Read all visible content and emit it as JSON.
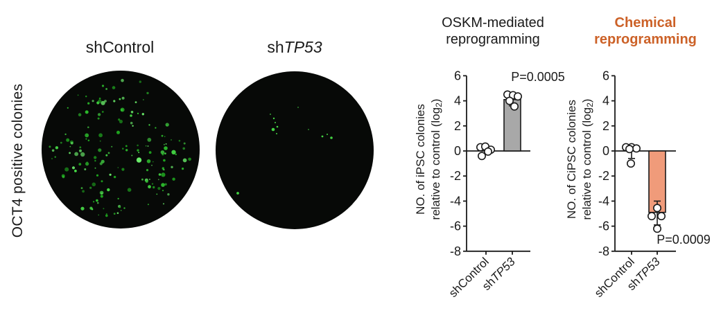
{
  "microscopy": {
    "row_label": "OCT4 positive colonies",
    "well_fill": "#070907",
    "colony_colors": [
      "#1fa81f",
      "#2ec42e",
      "#47dd47",
      "#6bef6b"
    ],
    "wells": [
      {
        "label": "shControl",
        "colony_count": 170,
        "seed": 12
      },
      {
        "label_prefix": "sh",
        "label_gene": "TP53",
        "colony_count": 12,
        "dots": [
          [
            -30,
            -46,
            1.2
          ],
          [
            -28,
            -40,
            1.0
          ],
          [
            -25,
            -34,
            1.3
          ],
          [
            -31,
            -30,
            2.3
          ],
          [
            -26,
            -24,
            1.0
          ],
          [
            -35,
            -52,
            0.9
          ],
          [
            40,
            -20,
            1.4
          ],
          [
            53,
            -18,
            1.8
          ],
          [
            47,
            -23,
            1.0
          ],
          [
            -82,
            62,
            1.9
          ],
          [
            20,
            -30,
            0.8
          ],
          [
            5,
            -62,
            0.8
          ]
        ]
      }
    ]
  },
  "chart_data": [
    {
      "type": "bar",
      "title_lines": [
        "OSKM-mediated",
        "reprogramming"
      ],
      "title_color": "#1a1a1a",
      "title_bold": false,
      "ylabel_line1": "NO. of iPSC colonies",
      "ylabel_line2_pre": "relative to control (log",
      "ylabel_sub": "2",
      "ylabel_line2_post": ")",
      "ylim": [
        -8,
        6
      ],
      "ytick_step": 2,
      "grid": false,
      "categories": [
        {
          "prefix": "sh",
          "gene": "Control",
          "italic": false
        },
        {
          "prefix": "sh",
          "gene": "TP53",
          "italic": true
        }
      ],
      "series": [
        {
          "name": "shControl",
          "mean": 0.05,
          "bar_fill": null,
          "error": null,
          "points": [
            0.3,
            0.35,
            0.1,
            -0.05,
            -0.4
          ],
          "jitter": [
            -8,
            -1,
            7,
            3,
            -6
          ]
        },
        {
          "name": "shTP53",
          "mean": 4.1,
          "bar_fill": "#a8a8a8",
          "error": [
            3.6,
            4.6
          ],
          "points": [
            4.5,
            4.45,
            4.35,
            4.0,
            3.55
          ],
          "jitter": [
            -7,
            1,
            8,
            -4,
            3
          ]
        }
      ],
      "p_label": "P=0.0005"
    },
    {
      "type": "bar",
      "title_lines": [
        "Chemical",
        "reprogramming"
      ],
      "title_color": "#cc6127",
      "title_bold": true,
      "ylabel_line1": "NO. of CiPSC colonies",
      "ylabel_line2_pre": "relative to control (log",
      "ylabel_sub": "2",
      "ylabel_line2_post": ")",
      "ylim": [
        -8,
        6
      ],
      "ytick_step": 2,
      "grid": false,
      "categories": [
        {
          "prefix": "sh",
          "gene": "Control",
          "italic": false
        },
        {
          "prefix": "sh",
          "gene": "TP53",
          "italic": true
        }
      ],
      "series": [
        {
          "name": "shControl",
          "mean": 0.1,
          "bar_fill": null,
          "error": [
            -0.6,
            0.35
          ],
          "points": [
            0.3,
            0.3,
            0.2,
            0.15,
            -1.0
          ],
          "jitter": [
            -8,
            0,
            7,
            -3,
            -1
          ]
        },
        {
          "name": "shTP53",
          "mean": -4.9,
          "bar_fill": "#f09b7a",
          "error": [
            -5.9,
            -4.0
          ],
          "points": [
            -4.55,
            -5.2,
            -5.2,
            -6.2
          ],
          "jitter": [
            0,
            -8,
            6,
            0
          ]
        }
      ],
      "p_label": "P=0.0009"
    }
  ]
}
